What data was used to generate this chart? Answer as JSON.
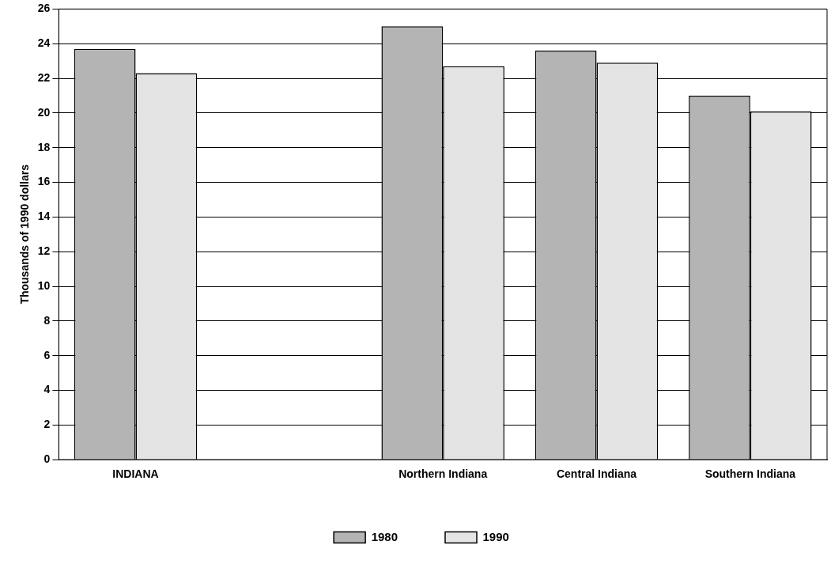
{
  "chart_data": {
    "type": "bar",
    "ylabel": "Thousands of 1990 dollars",
    "categories": [
      "INDIANA",
      null,
      "Northern Indiana",
      "Central Indiana",
      "Southern Indiana"
    ],
    "series": [
      {
        "name": "1980",
        "color": "#b4b4b4",
        "values": [
          23.7,
          null,
          25.0,
          23.6,
          21.0
        ]
      },
      {
        "name": "1990",
        "color": "#e4e4e4",
        "values": [
          22.3,
          null,
          22.7,
          22.9,
          20.1
        ]
      }
    ],
    "ylim": [
      0,
      26
    ],
    "yticks": [
      0,
      2,
      4,
      6,
      8,
      10,
      12,
      14,
      16,
      18,
      20,
      22,
      24,
      26
    ],
    "grid": "y",
    "legend": "bottom"
  }
}
